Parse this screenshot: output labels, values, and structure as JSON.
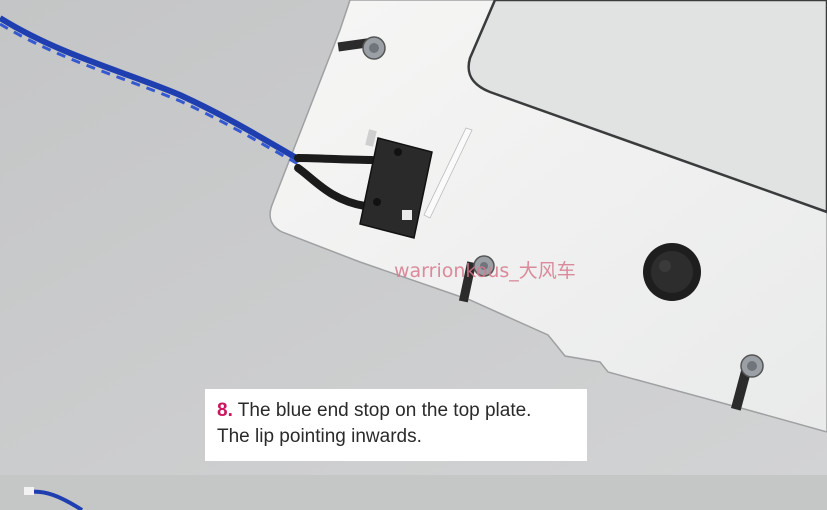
{
  "photo": {
    "subject": "end-stop-switch-on-top-plate"
  },
  "caption": {
    "number": "8.",
    "line1": " The blue end stop on the top plate.",
    "line2": "The lip pointing inwards."
  },
  "watermark": {
    "text": "warrionkous_大风车"
  },
  "colors": {
    "caption_number": "#c8175f",
    "wire": "#1f3fb0",
    "background": "#c9cacb",
    "plate": "#f2f2f1"
  }
}
